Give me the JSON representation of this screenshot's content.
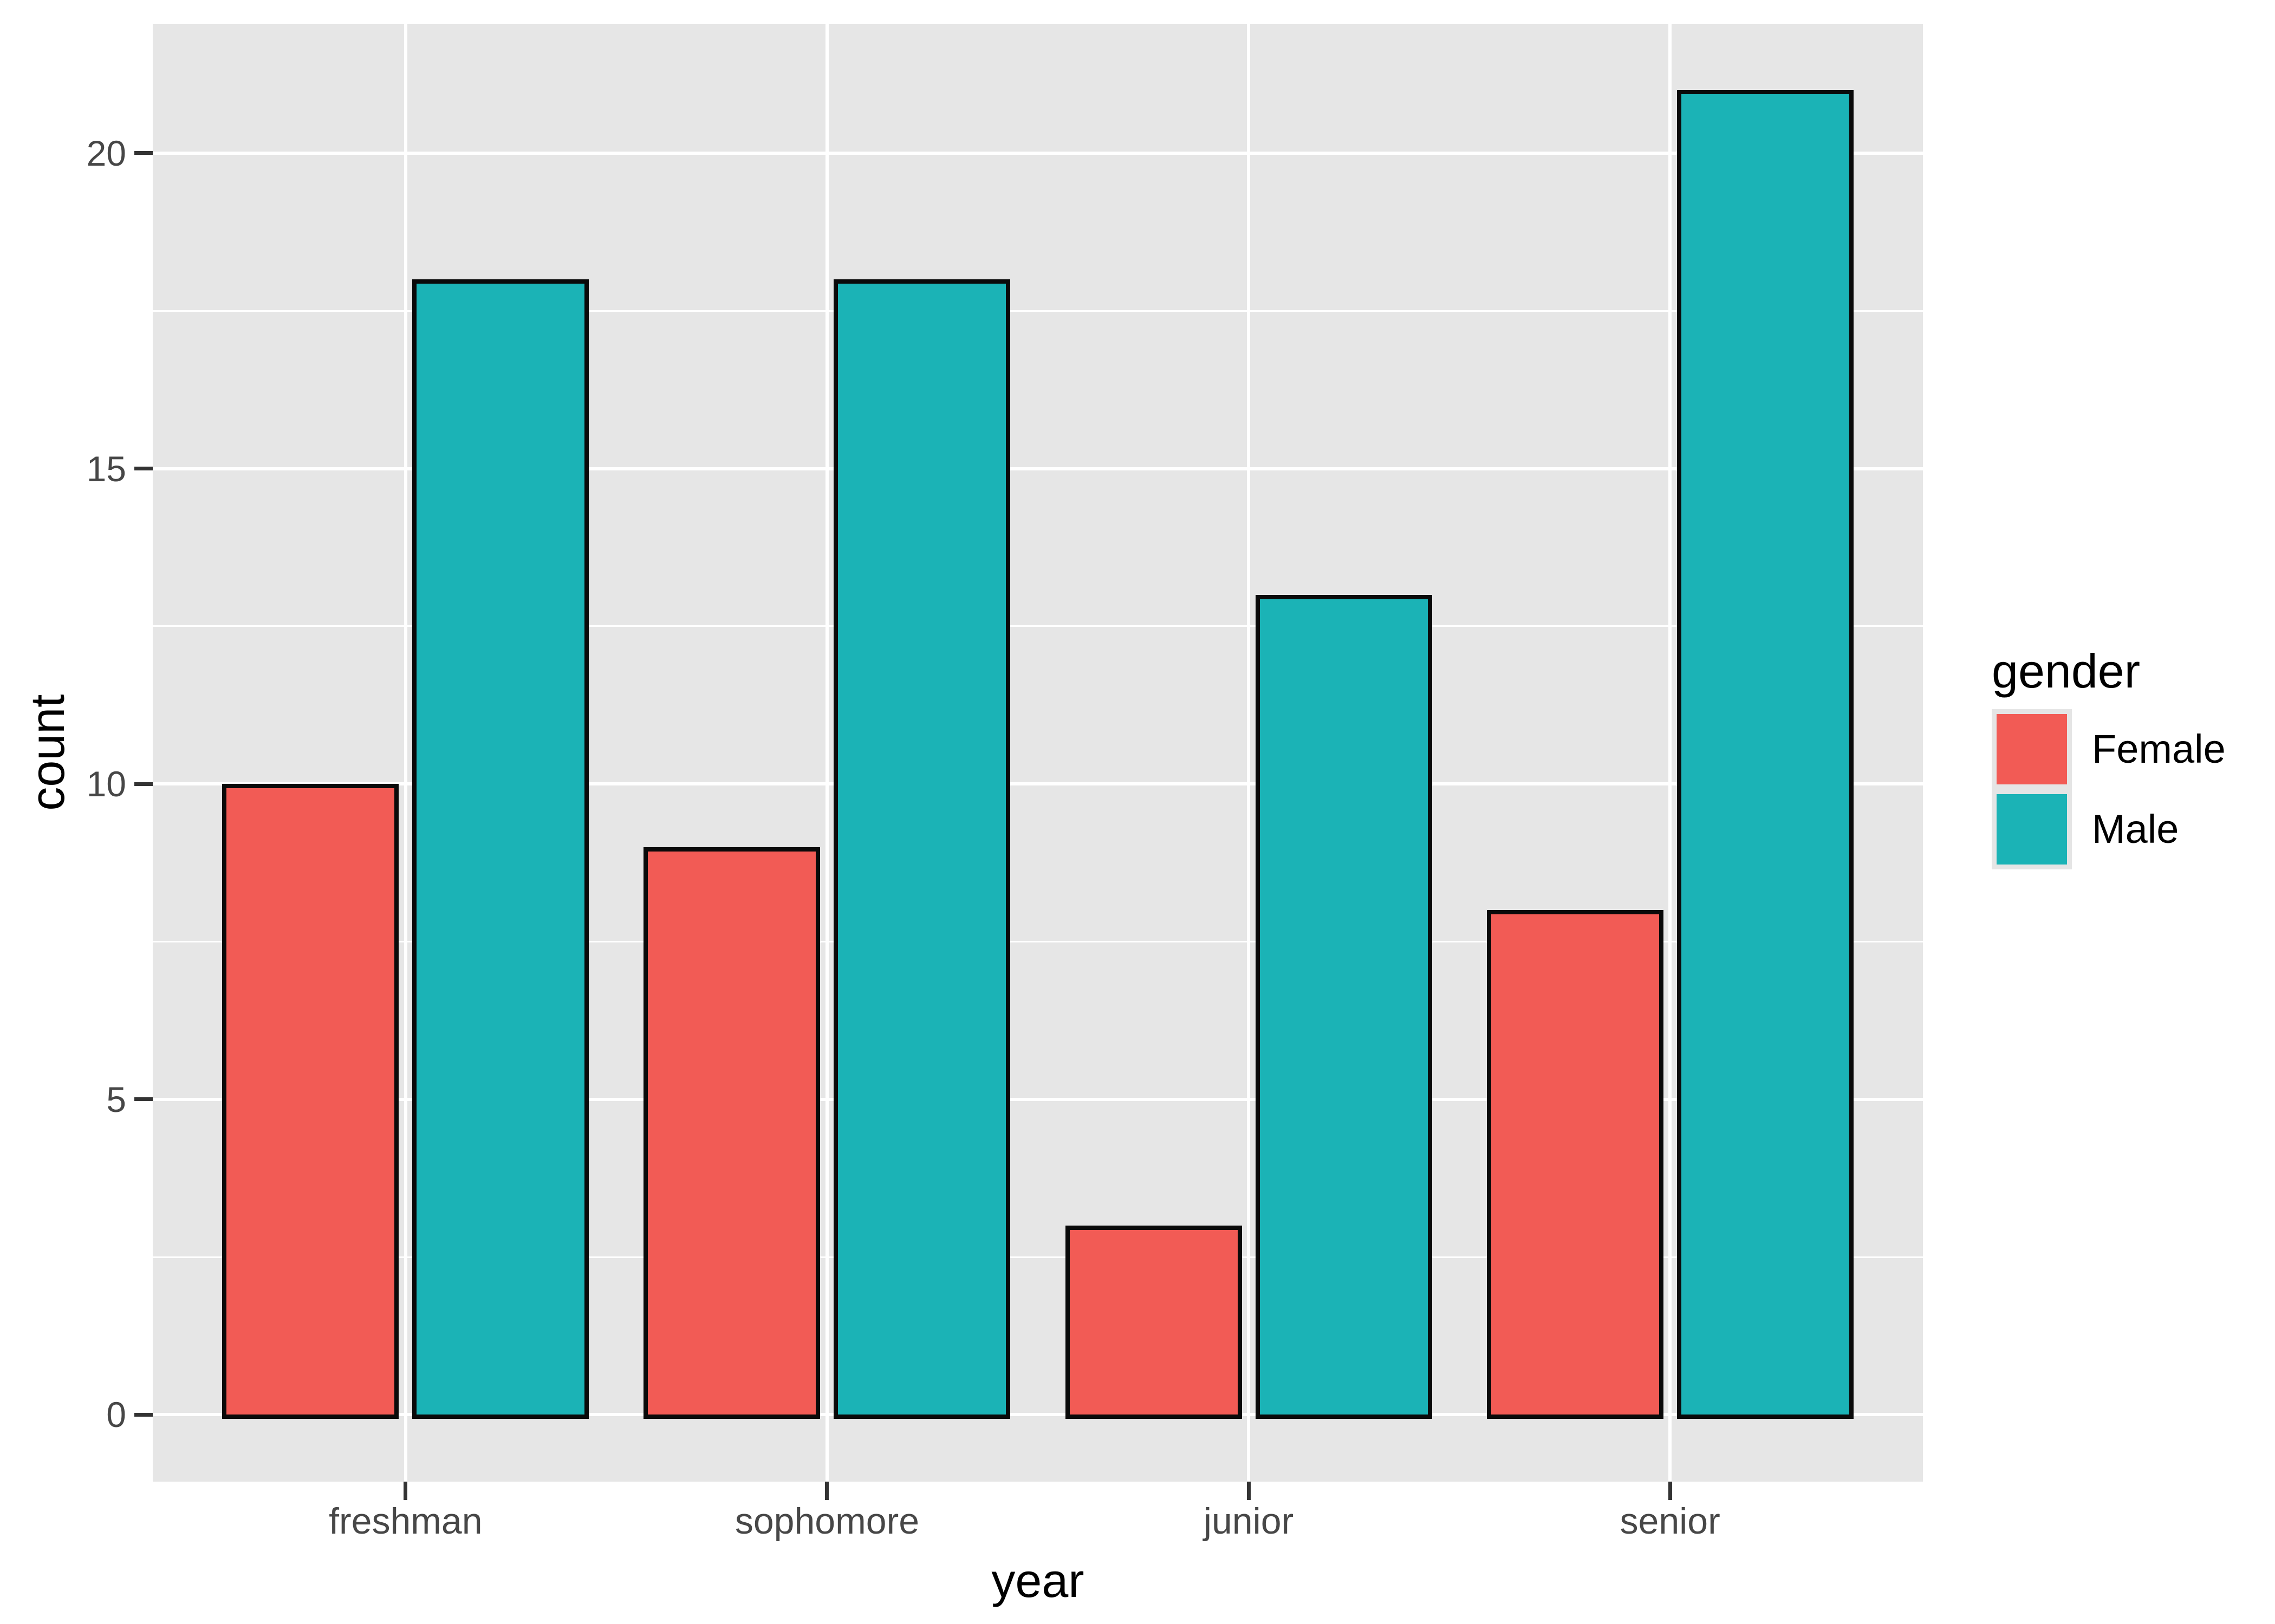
{
  "chart_data": {
    "type": "bar",
    "title": "",
    "categories": [
      "freshman",
      "sophomore",
      "junior",
      "senior"
    ],
    "series": [
      {
        "name": "Female",
        "color": "#F25B55",
        "values": [
          10,
          9,
          3,
          8
        ]
      },
      {
        "name": "Male",
        "color": "#1BB3B6",
        "values": [
          18,
          18,
          13,
          21
        ]
      }
    ],
    "xlabel": "year",
    "ylabel": "count",
    "y_ticks": [
      0,
      5,
      10,
      15,
      20
    ],
    "y_minor_ticks": [
      2.5,
      7.5,
      12.5,
      17.5
    ],
    "ylim": [
      -1.06,
      22.05
    ],
    "grid": true,
    "legend": {
      "title": "gender",
      "position": "right",
      "entries": [
        "Female",
        "Male"
      ]
    },
    "colors": {
      "panel_background": "#E6E6E6",
      "gridline": "#FFFFFF",
      "bar_outline": "#0A0A0A",
      "tick_mark": "#333333",
      "tick_label": "#474747",
      "axis_title": "#000000",
      "legend_key_background": "#E5E5E5"
    }
  }
}
